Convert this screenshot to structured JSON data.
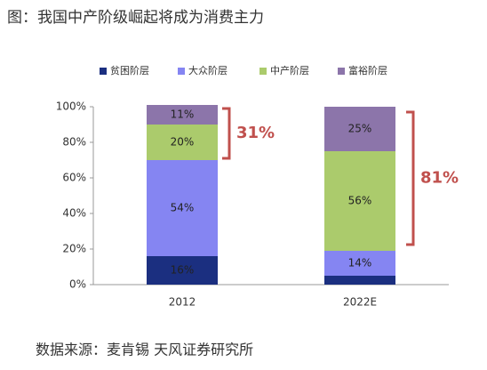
{
  "chart_data": {
    "type": "stacked_bar",
    "title": "图：我国中产阶级崛起将成为消费主力",
    "source": "数据来源：麦肯锡 天风证券研究所",
    "categories": [
      "2012",
      "2022E"
    ],
    "series": [
      {
        "name": "贫困阶层",
        "color": "#1b2f80",
        "values": [
          16,
          5
        ],
        "value_labels": [
          "16%",
          null
        ]
      },
      {
        "name": "大众阶层",
        "color": "#8585f2",
        "values": [
          54,
          14
        ],
        "value_labels": [
          "54%",
          "14%"
        ]
      },
      {
        "name": "中产阶层",
        "color": "#abcb6c",
        "values": [
          20,
          56
        ],
        "value_labels": [
          "20%",
          "56%"
        ]
      },
      {
        "name": "富裕阶层",
        "color": "#8c75aa",
        "values": [
          11,
          25
        ],
        "value_labels": [
          "11%",
          "25%"
        ]
      }
    ],
    "annotations": [
      "31%",
      "81%"
    ],
    "ylim": [
      0,
      100
    ],
    "yticks": [
      {
        "value": 0,
        "label": "0%"
      },
      {
        "value": 20,
        "label": "20%"
      },
      {
        "value": 40,
        "label": "40%"
      },
      {
        "value": 60,
        "label": "60%"
      },
      {
        "value": 80,
        "label": "80%"
      },
      {
        "value": 100,
        "label": "100%"
      }
    ]
  }
}
